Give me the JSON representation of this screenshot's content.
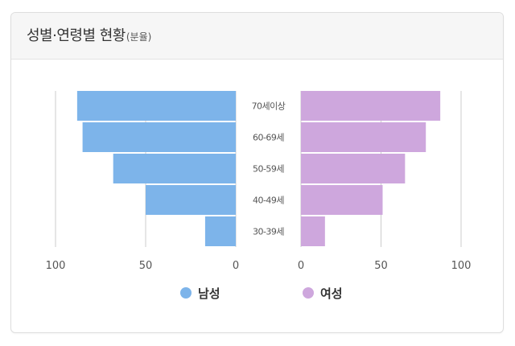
{
  "header": {
    "title": "성별·연령별 현황",
    "unit": "(분율)"
  },
  "legend": {
    "male_label": "남성",
    "female_label": "여성"
  },
  "colors": {
    "male": "#7db4ea",
    "female": "#cea7dd",
    "axis": "#cccccc",
    "tick_text": "#555555",
    "category_text": "#555555"
  },
  "chart_data": {
    "type": "bar",
    "orientation": "horizontal-pyramid",
    "categories": [
      "70세이상",
      "60-69세",
      "50-59세",
      "40-49세",
      "30-39세"
    ],
    "series": [
      {
        "name": "남성",
        "values": [
          88,
          85,
          68,
          50,
          17
        ]
      },
      {
        "name": "여성",
        "values": [
          87,
          78,
          65,
          51,
          15
        ]
      }
    ],
    "xlim": [
      0,
      100
    ],
    "ticks": [
      0,
      50,
      100
    ],
    "legend_position": "bottom-center"
  }
}
